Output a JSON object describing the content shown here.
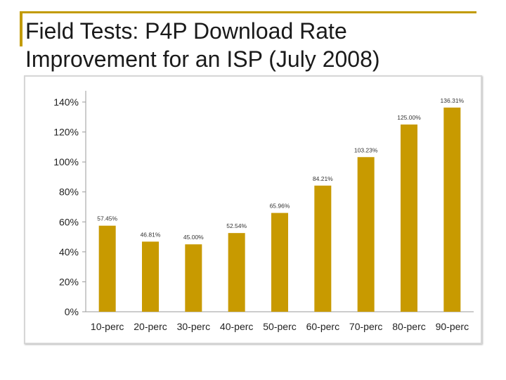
{
  "slide": {
    "title_line1": "Field Tests: P4P Download Rate",
    "title_line2": "Improvement for an ISP (July 2008)"
  },
  "colors": {
    "accent": "#c29b00",
    "bar": "#c89a00",
    "axis": "#9a9a9a"
  },
  "chart_data": {
    "type": "bar",
    "title": "Field Tests: P4P Download Rate Improvement for an ISP (July 2008)",
    "xlabel": "",
    "ylabel": "",
    "categories": [
      "10-perc",
      "20-perc",
      "30-perc",
      "40-perc",
      "50-perc",
      "60-perc",
      "70-perc",
      "80-perc",
      "90-perc"
    ],
    "values": [
      57.45,
      46.81,
      45.0,
      52.54,
      65.96,
      84.21,
      103.23,
      125.0,
      136.31
    ],
    "data_labels": [
      "57.45%",
      "46.81%",
      "45.00%",
      "52.54%",
      "65.96%",
      "84.21%",
      "103.23%",
      "125.00%",
      "136.31%"
    ],
    "ylim": [
      0,
      140
    ],
    "yticks": [
      0,
      20,
      40,
      60,
      80,
      100,
      120,
      140
    ],
    "ytick_labels": [
      "0%",
      "20%",
      "40%",
      "60%",
      "80%",
      "100%",
      "120%",
      "140%"
    ],
    "grid": false,
    "legend": "none"
  }
}
